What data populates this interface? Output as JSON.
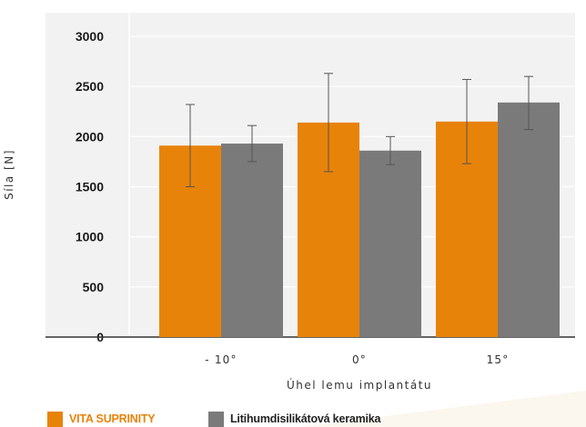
{
  "chart_data": {
    "type": "bar",
    "xlabel": "Úhel lemu implantátu",
    "ylabel": "Síla [N]",
    "ylim": [
      0,
      3000
    ],
    "yticks": [
      0,
      500,
      1000,
      1500,
      2000,
      2500,
      3000
    ],
    "categories": [
      "- 10°",
      "0°",
      "15°"
    ],
    "grid": true,
    "legend_position": "bottom-left",
    "series": [
      {
        "name": "VITA SUPRINITY",
        "color": "#E8830A",
        "values": [
          1910,
          2140,
          2150
        ],
        "error": [
          [
            1500,
            2320
          ],
          [
            1650,
            2630
          ],
          [
            1730,
            2570
          ]
        ]
      },
      {
        "name": "Litihumdisilikátová keramika",
        "color": "#7A7A7A",
        "values": [
          1930,
          1860,
          2340
        ],
        "error": [
          [
            1750,
            2110
          ],
          [
            1720,
            2000
          ],
          [
            2070,
            2600
          ]
        ]
      }
    ]
  },
  "colors": {
    "plot_background": "#F2F2F2",
    "gridline": "#FFFFFF",
    "axis": "#333333",
    "tick_text": "#1A1A1A",
    "label_text": "#333333",
    "error_bar": "#555555"
  }
}
